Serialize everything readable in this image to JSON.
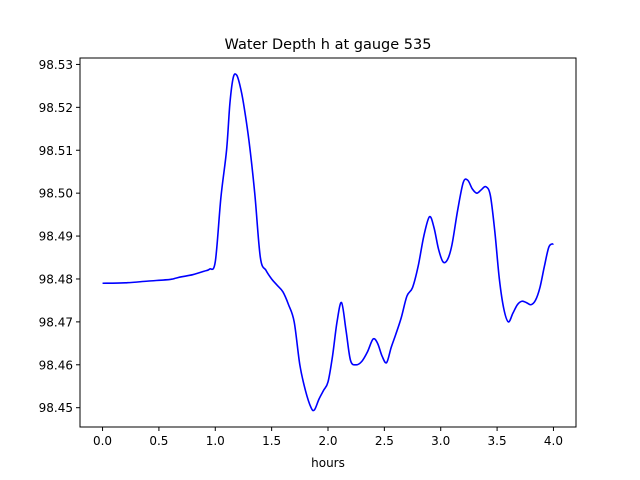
{
  "chart_data": {
    "type": "line",
    "title": "Water Depth h at gauge 535",
    "xlabel": "hours",
    "ylabel": "",
    "xlim": [
      -0.2,
      4.2
    ],
    "ylim": [
      98.4455,
      98.5315
    ],
    "xticks": [
      0.0,
      0.5,
      1.0,
      1.5,
      2.0,
      2.5,
      3.0,
      3.5,
      4.0
    ],
    "xtick_labels": [
      "0.0",
      "0.5",
      "1.0",
      "1.5",
      "2.0",
      "2.5",
      "3.0",
      "3.5",
      "4.0"
    ],
    "yticks": [
      98.45,
      98.46,
      98.47,
      98.48,
      98.49,
      98.5,
      98.51,
      98.52,
      98.53
    ],
    "ytick_labels": [
      "98.45",
      "98.46",
      "98.47",
      "98.48",
      "98.49",
      "98.50",
      "98.51",
      "98.52",
      "98.53"
    ],
    "grid": false,
    "series": [
      {
        "color": "#0000ff",
        "x": [
          0.0,
          0.2,
          0.4,
          0.6,
          0.65,
          0.7,
          0.8,
          0.9,
          0.95,
          1.0,
          1.05,
          1.1,
          1.13,
          1.16,
          1.19,
          1.22,
          1.25,
          1.3,
          1.35,
          1.4,
          1.45,
          1.5,
          1.55,
          1.6,
          1.65,
          1.7,
          1.75,
          1.8,
          1.85,
          1.88,
          1.92,
          1.96,
          2.0,
          2.04,
          2.08,
          2.12,
          2.16,
          2.2,
          2.25,
          2.3,
          2.35,
          2.4,
          2.44,
          2.48,
          2.52,
          2.56,
          2.6,
          2.65,
          2.7,
          2.75,
          2.8,
          2.85,
          2.9,
          2.94,
          2.98,
          3.02,
          3.06,
          3.1,
          3.15,
          3.2,
          3.24,
          3.28,
          3.32,
          3.36,
          3.4,
          3.44,
          3.48,
          3.52,
          3.56,
          3.6,
          3.64,
          3.68,
          3.72,
          3.76,
          3.8,
          3.84,
          3.88,
          3.92,
          3.96,
          4.0
        ],
        "y": [
          98.479,
          98.4791,
          98.4795,
          98.4799,
          98.4802,
          98.4805,
          98.481,
          98.4818,
          98.4823,
          98.484,
          98.499,
          98.51,
          98.521,
          98.527,
          98.5275,
          98.525,
          98.521,
          98.512,
          98.5,
          98.485,
          98.482,
          98.48,
          98.4785,
          98.477,
          98.474,
          98.47,
          98.46,
          98.454,
          98.45,
          98.4495,
          98.452,
          98.454,
          98.456,
          98.462,
          98.47,
          98.4745,
          98.468,
          98.461,
          98.46,
          98.4608,
          98.463,
          98.466,
          98.465,
          98.462,
          98.4605,
          98.464,
          98.467,
          98.471,
          98.476,
          98.478,
          98.483,
          98.49,
          98.4945,
          98.492,
          98.487,
          98.484,
          98.4845,
          98.488,
          98.496,
          98.5025,
          98.503,
          98.501,
          98.5,
          98.5008,
          98.5015,
          98.4995,
          98.491,
          98.48,
          98.473,
          98.47,
          98.472,
          98.474,
          98.4748,
          98.4745,
          98.474,
          98.475,
          98.478,
          98.483,
          98.4875,
          98.4882
        ]
      }
    ]
  }
}
